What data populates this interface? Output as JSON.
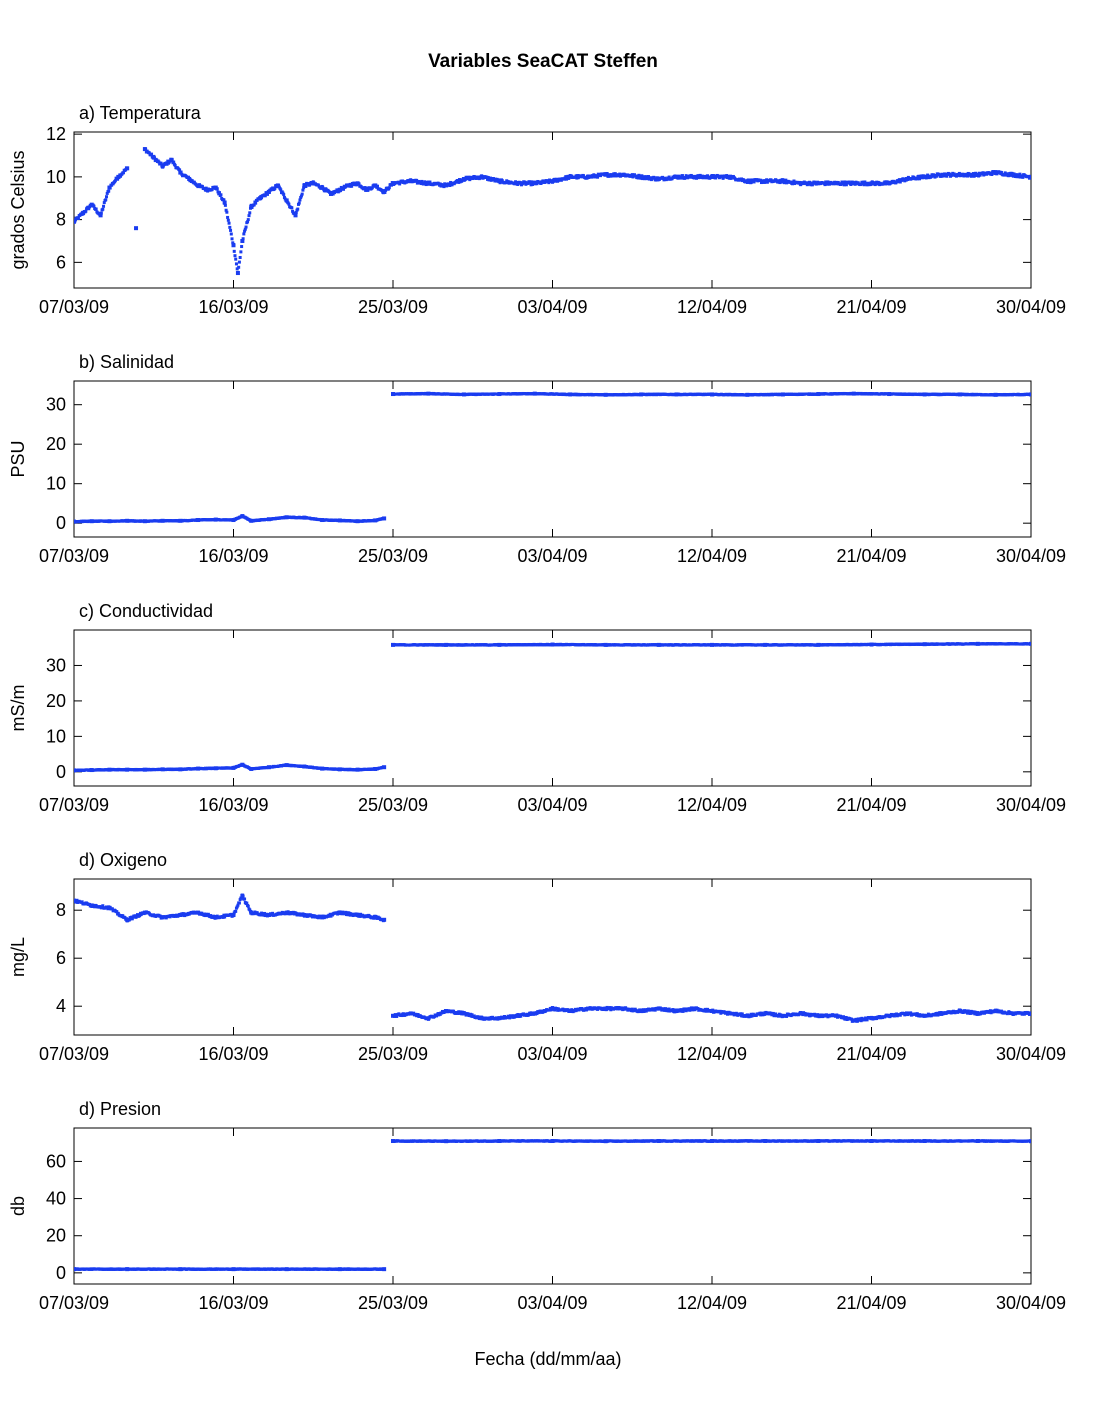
{
  "title": "Variables SeaCAT Steffen",
  "xlabel": "Fecha (dd/mm/aa)",
  "x_tick_labels": [
    "07/03/09",
    "16/03/09",
    "25/03/09",
    "03/04/09",
    "12/04/09",
    "21/04/09",
    "30/04/09"
  ],
  "colors": {
    "series": "#1a3cf0",
    "axes": "#000000",
    "background": "#ffffff"
  },
  "chart_data": [
    {
      "type": "scatter",
      "title": "a) Temperatura",
      "ylabel": "grados Celsius",
      "xlim": [
        "2009-03-07",
        "2009-04-30"
      ],
      "ylim": [
        4.8,
        12.1
      ],
      "yticks": [
        6,
        8,
        10,
        12
      ],
      "grid": false,
      "series": [
        {
          "values": [
            [
              "2009-03-07",
              7.9
            ],
            [
              "2009-03-07T12",
              8.3
            ],
            [
              "2009-03-08",
              8.7
            ],
            [
              "2009-03-08T12",
              8.2
            ],
            [
              "2009-03-09",
              9.5
            ],
            [
              "2009-03-09T12",
              10.0
            ],
            [
              "2009-03-10",
              10.4
            ],
            [
              "2009-03-10T12",
              7.6
            ],
            [
              "2009-03-11",
              11.3
            ],
            [
              "2009-03-11T12",
              10.9
            ],
            [
              "2009-03-12",
              10.5
            ],
            [
              "2009-03-12T12",
              10.8
            ],
            [
              "2009-03-13",
              10.2
            ],
            [
              "2009-03-13T12",
              9.9
            ],
            [
              "2009-03-14",
              9.6
            ],
            [
              "2009-03-14T12",
              9.4
            ],
            [
              "2009-03-15",
              9.5
            ],
            [
              "2009-03-15T12",
              8.8
            ],
            [
              "2009-03-16",
              6.8
            ],
            [
              "2009-03-16T06",
              5.5
            ],
            [
              "2009-03-16T12",
              7.0
            ],
            [
              "2009-03-17",
              8.6
            ],
            [
              "2009-03-17T12",
              9.0
            ],
            [
              "2009-03-18",
              9.3
            ],
            [
              "2009-03-18T12",
              9.6
            ],
            [
              "2009-03-19",
              8.9
            ],
            [
              "2009-03-19T12",
              8.2
            ],
            [
              "2009-03-20",
              9.6
            ],
            [
              "2009-03-20T12",
              9.7
            ],
            [
              "2009-03-21",
              9.5
            ],
            [
              "2009-03-21T12",
              9.2
            ],
            [
              "2009-03-22",
              9.4
            ],
            [
              "2009-03-22T12",
              9.6
            ],
            [
              "2009-03-23",
              9.7
            ],
            [
              "2009-03-23T12",
              9.4
            ],
            [
              "2009-03-24",
              9.6
            ],
            [
              "2009-03-24T12",
              9.3
            ],
            [
              "2009-03-25",
              9.7
            ],
            [
              "2009-03-26",
              9.8
            ],
            [
              "2009-03-27",
              9.7
            ],
            [
              "2009-03-28",
              9.6
            ],
            [
              "2009-03-29",
              9.9
            ],
            [
              "2009-03-30",
              10.0
            ],
            [
              "2009-03-31",
              9.8
            ],
            [
              "2009-04-01",
              9.7
            ],
            [
              "2009-04-02",
              9.7
            ],
            [
              "2009-04-03",
              9.8
            ],
            [
              "2009-04-04",
              10.0
            ],
            [
              "2009-04-05",
              10.0
            ],
            [
              "2009-04-06",
              10.1
            ],
            [
              "2009-04-07",
              10.1
            ],
            [
              "2009-04-08",
              10.0
            ],
            [
              "2009-04-09",
              9.9
            ],
            [
              "2009-04-10",
              10.0
            ],
            [
              "2009-04-11",
              10.0
            ],
            [
              "2009-04-12",
              10.0
            ],
            [
              "2009-04-13",
              10.0
            ],
            [
              "2009-04-14",
              9.8
            ],
            [
              "2009-04-15",
              9.8
            ],
            [
              "2009-04-16",
              9.8
            ],
            [
              "2009-04-17",
              9.7
            ],
            [
              "2009-04-18",
              9.7
            ],
            [
              "2009-04-19",
              9.7
            ],
            [
              "2009-04-20",
              9.7
            ],
            [
              "2009-04-21",
              9.7
            ],
            [
              "2009-04-22",
              9.7
            ],
            [
              "2009-04-23",
              9.9
            ],
            [
              "2009-04-24",
              10.0
            ],
            [
              "2009-04-25",
              10.1
            ],
            [
              "2009-04-26",
              10.1
            ],
            [
              "2009-04-27",
              10.1
            ],
            [
              "2009-04-28",
              10.2
            ],
            [
              "2009-04-29",
              10.1
            ],
            [
              "2009-04-30",
              10.0
            ]
          ]
        }
      ]
    },
    {
      "type": "scatter",
      "title": "b) Salinidad",
      "ylabel": "PSU",
      "xlim": [
        "2009-03-07",
        "2009-04-30"
      ],
      "ylim": [
        -3.5,
        36
      ],
      "yticks": [
        0,
        10,
        20,
        30
      ],
      "grid": false,
      "series": [
        {
          "values": [
            [
              "2009-03-07",
              0.4
            ],
            [
              "2009-03-08",
              0.5
            ],
            [
              "2009-03-09",
              0.5
            ],
            [
              "2009-03-10",
              0.6
            ],
            [
              "2009-03-11",
              0.5
            ],
            [
              "2009-03-12",
              0.6
            ],
            [
              "2009-03-13",
              0.6
            ],
            [
              "2009-03-14",
              0.8
            ],
            [
              "2009-03-15",
              0.9
            ],
            [
              "2009-03-16",
              0.8
            ],
            [
              "2009-03-16T12",
              1.8
            ],
            [
              "2009-03-17",
              0.6
            ],
            [
              "2009-03-18",
              1.0
            ],
            [
              "2009-03-19",
              1.5
            ],
            [
              "2009-03-20",
              1.4
            ],
            [
              "2009-03-21",
              0.8
            ],
            [
              "2009-03-22",
              0.7
            ],
            [
              "2009-03-23",
              0.5
            ],
            [
              "2009-03-24",
              0.7
            ],
            [
              "2009-03-24T12",
              1.2
            ],
            [
              "2009-03-25",
              32.7
            ],
            [
              "2009-03-27",
              32.8
            ],
            [
              "2009-03-29",
              32.6
            ],
            [
              "2009-03-31",
              32.7
            ],
            [
              "2009-04-02",
              32.8
            ],
            [
              "2009-04-04",
              32.6
            ],
            [
              "2009-04-06",
              32.5
            ],
            [
              "2009-04-08",
              32.6
            ],
            [
              "2009-04-10",
              32.6
            ],
            [
              "2009-04-12",
              32.6
            ],
            [
              "2009-04-14",
              32.5
            ],
            [
              "2009-04-16",
              32.6
            ],
            [
              "2009-04-18",
              32.7
            ],
            [
              "2009-04-20",
              32.8
            ],
            [
              "2009-04-22",
              32.7
            ],
            [
              "2009-04-24",
              32.6
            ],
            [
              "2009-04-26",
              32.6
            ],
            [
              "2009-04-28",
              32.5
            ],
            [
              "2009-04-30",
              32.6
            ]
          ]
        }
      ]
    },
    {
      "type": "scatter",
      "title": "c) Conductividad",
      "ylabel": "mS/m",
      "xlim": [
        "2009-03-07",
        "2009-04-30"
      ],
      "ylim": [
        -4,
        40
      ],
      "yticks": [
        0,
        10,
        20,
        30
      ],
      "grid": false,
      "series": [
        {
          "values": [
            [
              "2009-03-07",
              0.4
            ],
            [
              "2009-03-08",
              0.5
            ],
            [
              "2009-03-09",
              0.6
            ],
            [
              "2009-03-10",
              0.6
            ],
            [
              "2009-03-11",
              0.6
            ],
            [
              "2009-03-12",
              0.7
            ],
            [
              "2009-03-13",
              0.7
            ],
            [
              "2009-03-14",
              0.9
            ],
            [
              "2009-03-15",
              1.0
            ],
            [
              "2009-03-16",
              1.1
            ],
            [
              "2009-03-16T12",
              2.0
            ],
            [
              "2009-03-17",
              0.8
            ],
            [
              "2009-03-18",
              1.3
            ],
            [
              "2009-03-19",
              1.9
            ],
            [
              "2009-03-20",
              1.5
            ],
            [
              "2009-03-21",
              0.9
            ],
            [
              "2009-03-22",
              0.7
            ],
            [
              "2009-03-23",
              0.6
            ],
            [
              "2009-03-24",
              0.8
            ],
            [
              "2009-03-24T12",
              1.3
            ],
            [
              "2009-03-25",
              35.8
            ],
            [
              "2009-03-28",
              35.8
            ],
            [
              "2009-03-31",
              35.8
            ],
            [
              "2009-04-03",
              35.9
            ],
            [
              "2009-04-06",
              35.8
            ],
            [
              "2009-04-09",
              35.8
            ],
            [
              "2009-04-12",
              35.8
            ],
            [
              "2009-04-15",
              35.8
            ],
            [
              "2009-04-18",
              35.8
            ],
            [
              "2009-04-21",
              35.9
            ],
            [
              "2009-04-24",
              36.0
            ],
            [
              "2009-04-27",
              36.1
            ],
            [
              "2009-04-30",
              36.1
            ]
          ]
        }
      ]
    },
    {
      "type": "scatter",
      "title": "d) Oxigeno",
      "ylabel": "mg/L",
      "xlim": [
        "2009-03-07",
        "2009-04-30"
      ],
      "ylim": [
        2.8,
        9.3
      ],
      "yticks": [
        4,
        6,
        8
      ],
      "grid": false,
      "series": [
        {
          "values": [
            [
              "2009-03-07",
              8.4
            ],
            [
              "2009-03-08",
              8.2
            ],
            [
              "2009-03-09",
              8.1
            ],
            [
              "2009-03-10",
              7.6
            ],
            [
              "2009-03-11",
              7.9
            ],
            [
              "2009-03-12",
              7.7
            ],
            [
              "2009-03-13",
              7.8
            ],
            [
              "2009-03-14",
              7.9
            ],
            [
              "2009-03-15",
              7.7
            ],
            [
              "2009-03-16",
              7.8
            ],
            [
              "2009-03-16T12",
              8.6
            ],
            [
              "2009-03-17",
              7.9
            ],
            [
              "2009-03-18",
              7.8
            ],
            [
              "2009-03-19",
              7.9
            ],
            [
              "2009-03-20",
              7.8
            ],
            [
              "2009-03-21",
              7.7
            ],
            [
              "2009-03-22",
              7.9
            ],
            [
              "2009-03-23",
              7.8
            ],
            [
              "2009-03-24",
              7.7
            ],
            [
              "2009-03-24T12",
              7.6
            ],
            [
              "2009-03-25",
              3.6
            ],
            [
              "2009-03-26",
              3.7
            ],
            [
              "2009-03-27",
              3.5
            ],
            [
              "2009-03-28",
              3.8
            ],
            [
              "2009-03-29",
              3.7
            ],
            [
              "2009-03-30",
              3.5
            ],
            [
              "2009-03-31",
              3.5
            ],
            [
              "2009-04-01",
              3.6
            ],
            [
              "2009-04-02",
              3.7
            ],
            [
              "2009-04-03",
              3.9
            ],
            [
              "2009-04-04",
              3.8
            ],
            [
              "2009-04-05",
              3.9
            ],
            [
              "2009-04-06",
              3.9
            ],
            [
              "2009-04-07",
              3.9
            ],
            [
              "2009-04-08",
              3.8
            ],
            [
              "2009-04-09",
              3.9
            ],
            [
              "2009-04-10",
              3.8
            ],
            [
              "2009-04-11",
              3.9
            ],
            [
              "2009-04-12",
              3.8
            ],
            [
              "2009-04-13",
              3.7
            ],
            [
              "2009-04-14",
              3.6
            ],
            [
              "2009-04-15",
              3.7
            ],
            [
              "2009-04-16",
              3.6
            ],
            [
              "2009-04-17",
              3.7
            ],
            [
              "2009-04-18",
              3.6
            ],
            [
              "2009-04-19",
              3.6
            ],
            [
              "2009-04-20",
              3.4
            ],
            [
              "2009-04-21",
              3.5
            ],
            [
              "2009-04-22",
              3.6
            ],
            [
              "2009-04-23",
              3.7
            ],
            [
              "2009-04-24",
              3.6
            ],
            [
              "2009-04-25",
              3.7
            ],
            [
              "2009-04-26",
              3.8
            ],
            [
              "2009-04-27",
              3.7
            ],
            [
              "2009-04-28",
              3.8
            ],
            [
              "2009-04-29",
              3.7
            ],
            [
              "2009-04-30",
              3.7
            ]
          ]
        }
      ]
    },
    {
      "type": "scatter",
      "title": "d) Presion",
      "ylabel": "db",
      "xlim": [
        "2009-03-07",
        "2009-04-30"
      ],
      "ylim": [
        -6,
        78
      ],
      "yticks": [
        0,
        20,
        40,
        60
      ],
      "grid": false,
      "series": [
        {
          "values": [
            [
              "2009-03-07",
              2.0
            ],
            [
              "2009-03-10",
              2.0
            ],
            [
              "2009-03-13",
              2.0
            ],
            [
              "2009-03-16",
              2.0
            ],
            [
              "2009-03-19",
              2.0
            ],
            [
              "2009-03-22",
              2.0
            ],
            [
              "2009-03-24T12",
              2.0
            ],
            [
              "2009-03-25",
              71.0
            ],
            [
              "2009-03-28",
              70.9
            ],
            [
              "2009-03-31",
              71.0
            ],
            [
              "2009-04-03",
              71.0
            ],
            [
              "2009-04-06",
              70.9
            ],
            [
              "2009-04-09",
              71.0
            ],
            [
              "2009-04-12",
              71.0
            ],
            [
              "2009-04-15",
              71.0
            ],
            [
              "2009-04-18",
              71.0
            ],
            [
              "2009-04-21",
              71.0
            ],
            [
              "2009-04-24",
              71.0
            ],
            [
              "2009-04-27",
              71.0
            ],
            [
              "2009-04-30",
              70.9
            ]
          ]
        }
      ]
    }
  ]
}
